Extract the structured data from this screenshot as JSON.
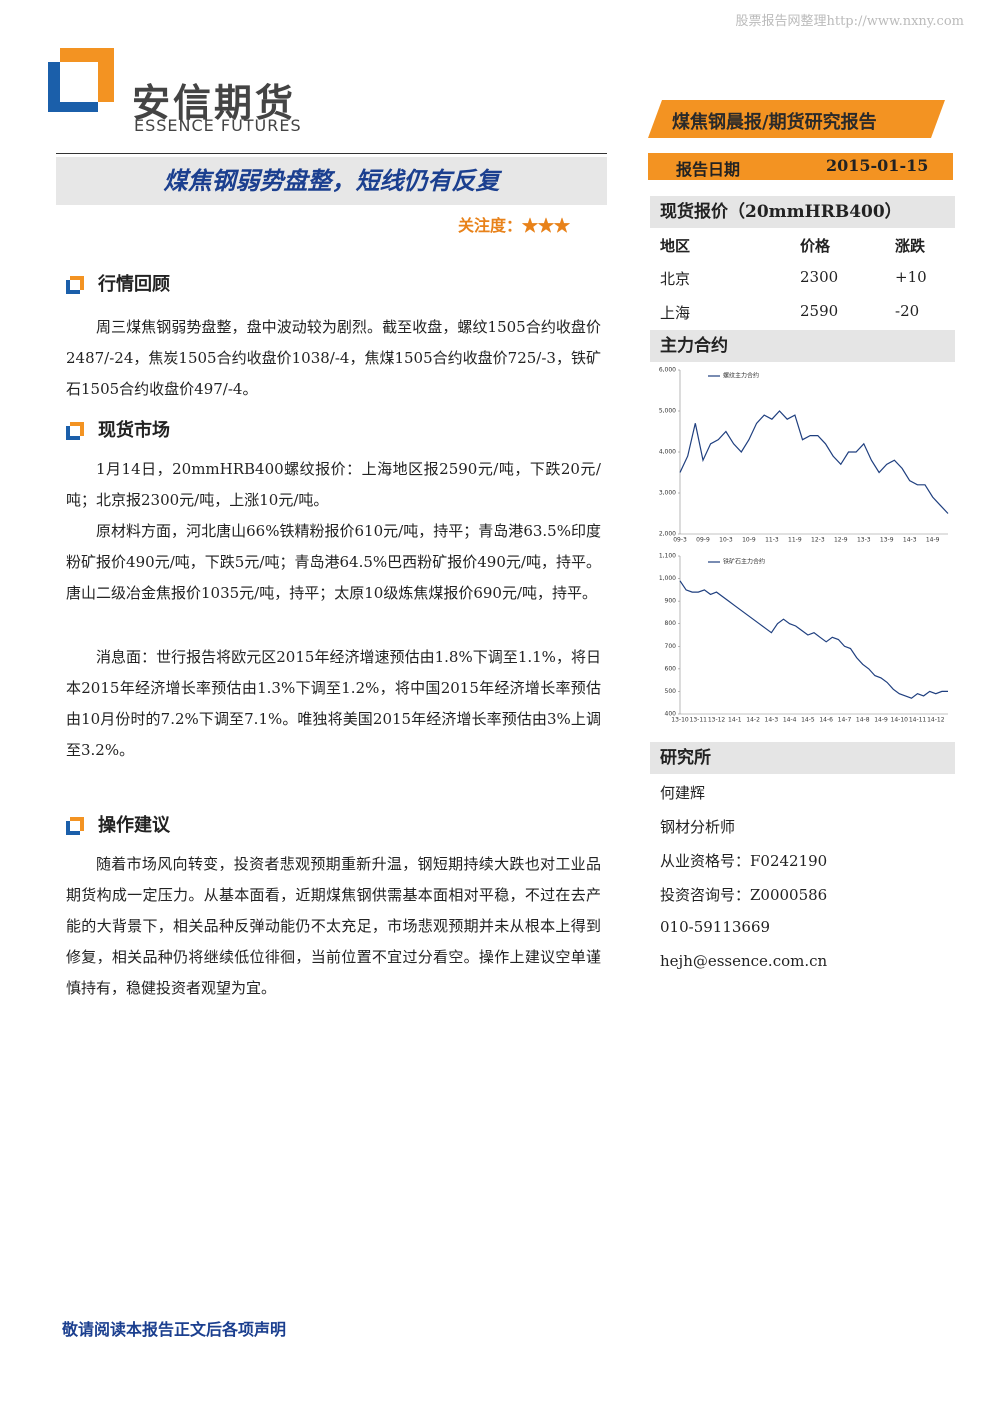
{
  "watermark": "股票报告网整理http://www.nxny.com",
  "logo": {
    "name": "安信期货",
    "english": "ESSENCE FUTURES"
  },
  "report_type": "煤焦钢晨报/期货研究报告",
  "report_date": {
    "label": "报告日期",
    "value": "2015-01-15"
  },
  "title": "煤焦钢弱势盘整，短线仍有反复",
  "attention": {
    "label": "关注度：",
    "stars": "★★★"
  },
  "sections": [
    {
      "heading": "行情回顾",
      "paragraphs": [
        "周三煤焦钢弱势盘整，盘中波动较为剧烈。截至收盘，螺纹1505合约收盘价2487/-24，焦炭1505合约收盘价1038/-4，焦煤1505合约收盘价725/-3，铁矿石1505合约收盘价497/-4。"
      ]
    },
    {
      "heading": "现货市场",
      "paragraphs": [
        "1月14日，20mmHRB400螺纹报价：上海地区报2590元/吨，下跌20元/吨；北京报2300元/吨，上涨10元/吨。",
        "原材料方面，河北唐山66%铁精粉报价610元/吨，持平；青岛港63.5%印度粉矿报价490元/吨，下跌5元/吨；青岛港64.5%巴西粉矿报价490元/吨，持平。唐山二级冶金焦报价1035元/吨，持平；太原10级炼焦煤报价690元/吨，持平。",
        "消息面：世行报告将欧元区2015年经济增速预估由1.8%下调至1.1%，将日本2015年经济增长率预估由1.3%下调至1.2%，将中国2015年经济增长率预估由10月份时的7.2%下调至7.1%。唯独将美国2015年经济增长率预估由3%上调至3.2%。"
      ]
    },
    {
      "heading": "操作建议",
      "paragraphs": [
        "随着市场风向转变，投资者悲观预期重新升温，钢短期持续大跌也对工业品期货构成一定压力。从基本面看，近期煤焦钢供需基本面相对平稳，不过在去产能的大背景下，相关品种反弹动能仍不太充足，市场悲观预期并未从根本上得到修复，相关品种仍将继续低位徘徊，当前位置不宜过分看空。操作上建议空单谨慎持有，稳健投资者观望为宜。"
      ]
    }
  ],
  "spot_price": {
    "heading": "现货报价（20mmHRB400）",
    "columns": [
      "地区",
      "价格",
      "涨跌"
    ],
    "rows": [
      [
        "北京",
        "2300",
        "+10"
      ],
      [
        "上海",
        "2590",
        "-20"
      ]
    ]
  },
  "main_contract": {
    "heading": "主力合约",
    "charts": [
      {
        "type": "line",
        "legend": "螺纹主力合约",
        "color": "#1f3f7f",
        "categories": [
          "09-3",
          null,
          null,
          "09-9",
          null,
          null,
          "10-3",
          null,
          null,
          "10-9",
          null,
          null,
          "11-3",
          null,
          null,
          "11-9",
          null,
          null,
          "12-3",
          null,
          null,
          "12-9",
          null,
          null,
          "13-3",
          null,
          null,
          "13-9",
          null,
          null,
          "14-3",
          null,
          null,
          "14-9",
          null,
          null
        ],
        "values": [
          3500,
          3900,
          4700,
          3800,
          4200,
          4300,
          4500,
          4200,
          4000,
          4300,
          4700,
          4900,
          4800,
          5000,
          4800,
          4900,
          4300,
          4400,
          4400,
          4200,
          3900,
          3700,
          4000,
          4000,
          4200,
          3800,
          3500,
          3700,
          3800,
          3600,
          3300,
          3200,
          3200,
          2900,
          2700,
          2500
        ],
        "ylim": [
          2000,
          6000
        ],
        "yticks": [
          {
            "value": 2000,
            "label": "2,000"
          },
          {
            "value": 3000,
            "label": "3,000"
          },
          {
            "value": 4000,
            "label": "4,000"
          },
          {
            "value": 5000,
            "label": "5,000"
          },
          {
            "value": 6000,
            "label": "6,000"
          }
        ]
      },
      {
        "type": "line",
        "legend": "铁矿石主力合约",
        "color": "#1f3f7f",
        "categories": [
          "13-10",
          null,
          null,
          "13-11",
          null,
          null,
          "13-12",
          null,
          null,
          "14-1",
          null,
          null,
          "14-2",
          null,
          null,
          "14-3",
          null,
          null,
          "14-4",
          null,
          null,
          "14-5",
          null,
          null,
          "14-6",
          null,
          null,
          "14-7",
          null,
          null,
          "14-8",
          null,
          null,
          "14-9",
          null,
          null,
          "14-10",
          null,
          null,
          "14-11",
          null,
          null,
          "14-12",
          null,
          null
        ],
        "values": [
          990,
          950,
          940,
          940,
          950,
          930,
          940,
          920,
          900,
          880,
          860,
          840,
          820,
          800,
          780,
          760,
          800,
          820,
          800,
          790,
          770,
          750,
          760,
          740,
          720,
          740,
          730,
          700,
          690,
          650,
          620,
          600,
          570,
          560,
          540,
          510,
          490,
          480,
          470,
          490,
          480,
          500,
          490,
          500,
          500
        ],
        "ylim": [
          400,
          1100
        ],
        "yticks": [
          400,
          500,
          600,
          700,
          800,
          900,
          {
            "value": 1000,
            "label": "1,000"
          },
          {
            "value": 1100,
            "label": "1,100"
          }
        ]
      }
    ]
  },
  "research": {
    "heading": "研究所",
    "lines": [
      "何建辉",
      "钢材分析师",
      "从业资格号：F0242190",
      "投资咨询号：Z0000586",
      "010-59113669",
      "hejh@essence.com.cn"
    ]
  },
  "footer": "敬请阅读本报告正文后各项声明"
}
